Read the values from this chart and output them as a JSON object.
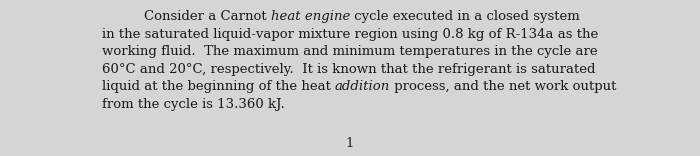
{
  "background_color": "#d3d5d9",
  "text_color": "#1a1a1a",
  "page_number": "1",
  "font_size": 9.5,
  "font_family": "DejaVu Serif",
  "lines": [
    [
      {
        "text": "Consider a Carnot ",
        "style": "normal"
      },
      {
        "text": "heat engine",
        "style": "italic"
      },
      {
        "text": " cycle executed in a closed system",
        "style": "normal"
      }
    ],
    [
      {
        "text": "in the saturated liquid-vapor mixture region using 0.8 kg of R-134a as the",
        "style": "normal"
      }
    ],
    [
      {
        "text": "working fluid.  The maximum and minimum temperatures in the cycle are",
        "style": "normal"
      }
    ],
    [
      {
        "text": "60°C and 20°C, respectively.  It is known that the refrigerant is saturated",
        "style": "normal"
      }
    ],
    [
      {
        "text": "liquid at the beginning of the heat ",
        "style": "normal"
      },
      {
        "text": "addition",
        "style": "italic"
      },
      {
        "text": " process, and the net work output",
        "style": "normal"
      }
    ],
    [
      {
        "text": "from the cycle is 13.360 kJ.",
        "style": "normal"
      }
    ]
  ],
  "line1_indent": true,
  "figwidth": 7.0,
  "figheight": 1.56,
  "dpi": 100
}
